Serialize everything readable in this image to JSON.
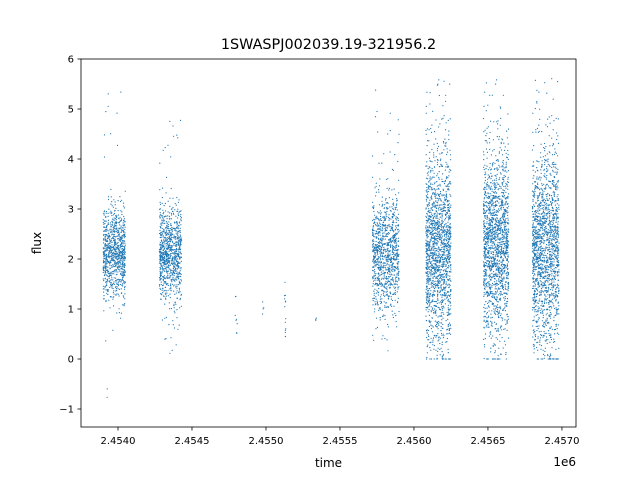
{
  "chart_data": {
    "type": "scatter",
    "title": "1SWASPJ002039.19-321956.2",
    "xlabel": "time",
    "ylabel": "flux",
    "x_offset_label": "1e6",
    "xlim": [
      2453750,
      2457095
    ],
    "ylim": [
      -1.36,
      6.0
    ],
    "xticks": [
      2454000,
      2454500,
      2455000,
      2455500,
      2456000,
      2456500,
      2457000
    ],
    "xtick_labels": [
      "2.4540",
      "2.4545",
      "2.4550",
      "2.4555",
      "2.4560",
      "2.4565",
      "2.4570"
    ],
    "yticks": [
      -1,
      0,
      1,
      2,
      3,
      4,
      5,
      6
    ],
    "ytick_labels": [
      "−1",
      "0",
      "1",
      "2",
      "3",
      "4",
      "5",
      "6"
    ],
    "grid": false,
    "marker_color": "#1f77b4",
    "clusters": [
      {
        "x_range": [
          2453900,
          2454050
        ],
        "y_mean": 2.1,
        "y_sd": 0.45,
        "y_min": -1.0,
        "y_max": 5.5,
        "count": 900
      },
      {
        "x_range": [
          2454280,
          2454430
        ],
        "y_mean": 2.1,
        "y_sd": 0.45,
        "y_min": 0.1,
        "y_max": 4.9,
        "count": 900
      },
      {
        "x_range": [
          2454790,
          2454810
        ],
        "y_mean": 0.9,
        "y_sd": 0.25,
        "y_min": 0.5,
        "y_max": 1.25,
        "count": 8
      },
      {
        "x_range": [
          2454975,
          2454985
        ],
        "y_mean": 1.05,
        "y_sd": 0.1,
        "y_min": 0.9,
        "y_max": 1.25,
        "count": 4
      },
      {
        "x_range": [
          2455125,
          2455135
        ],
        "y_mean": 1.0,
        "y_sd": 0.3,
        "y_min": 0.45,
        "y_max": 1.55,
        "count": 14
      },
      {
        "x_range": [
          2455335,
          2455345
        ],
        "y_mean": 0.8,
        "y_sd": 0.03,
        "y_min": 0.75,
        "y_max": 0.85,
        "count": 3
      },
      {
        "x_range": [
          2455720,
          2455900
        ],
        "y_mean": 2.1,
        "y_sd": 0.55,
        "y_min": 0.1,
        "y_max": 5.5,
        "count": 1000
      },
      {
        "x_range": [
          2456080,
          2456250
        ],
        "y_mean": 2.2,
        "y_sd": 0.95,
        "y_min": 0.0,
        "y_max": 5.65,
        "count": 1600
      },
      {
        "x_range": [
          2456470,
          2456640
        ],
        "y_mean": 2.3,
        "y_sd": 0.9,
        "y_min": 0.0,
        "y_max": 5.65,
        "count": 1600
      },
      {
        "x_range": [
          2456800,
          2456980
        ],
        "y_mean": 2.2,
        "y_sd": 0.95,
        "y_min": 0.0,
        "y_max": 5.7,
        "count": 1600
      }
    ]
  }
}
